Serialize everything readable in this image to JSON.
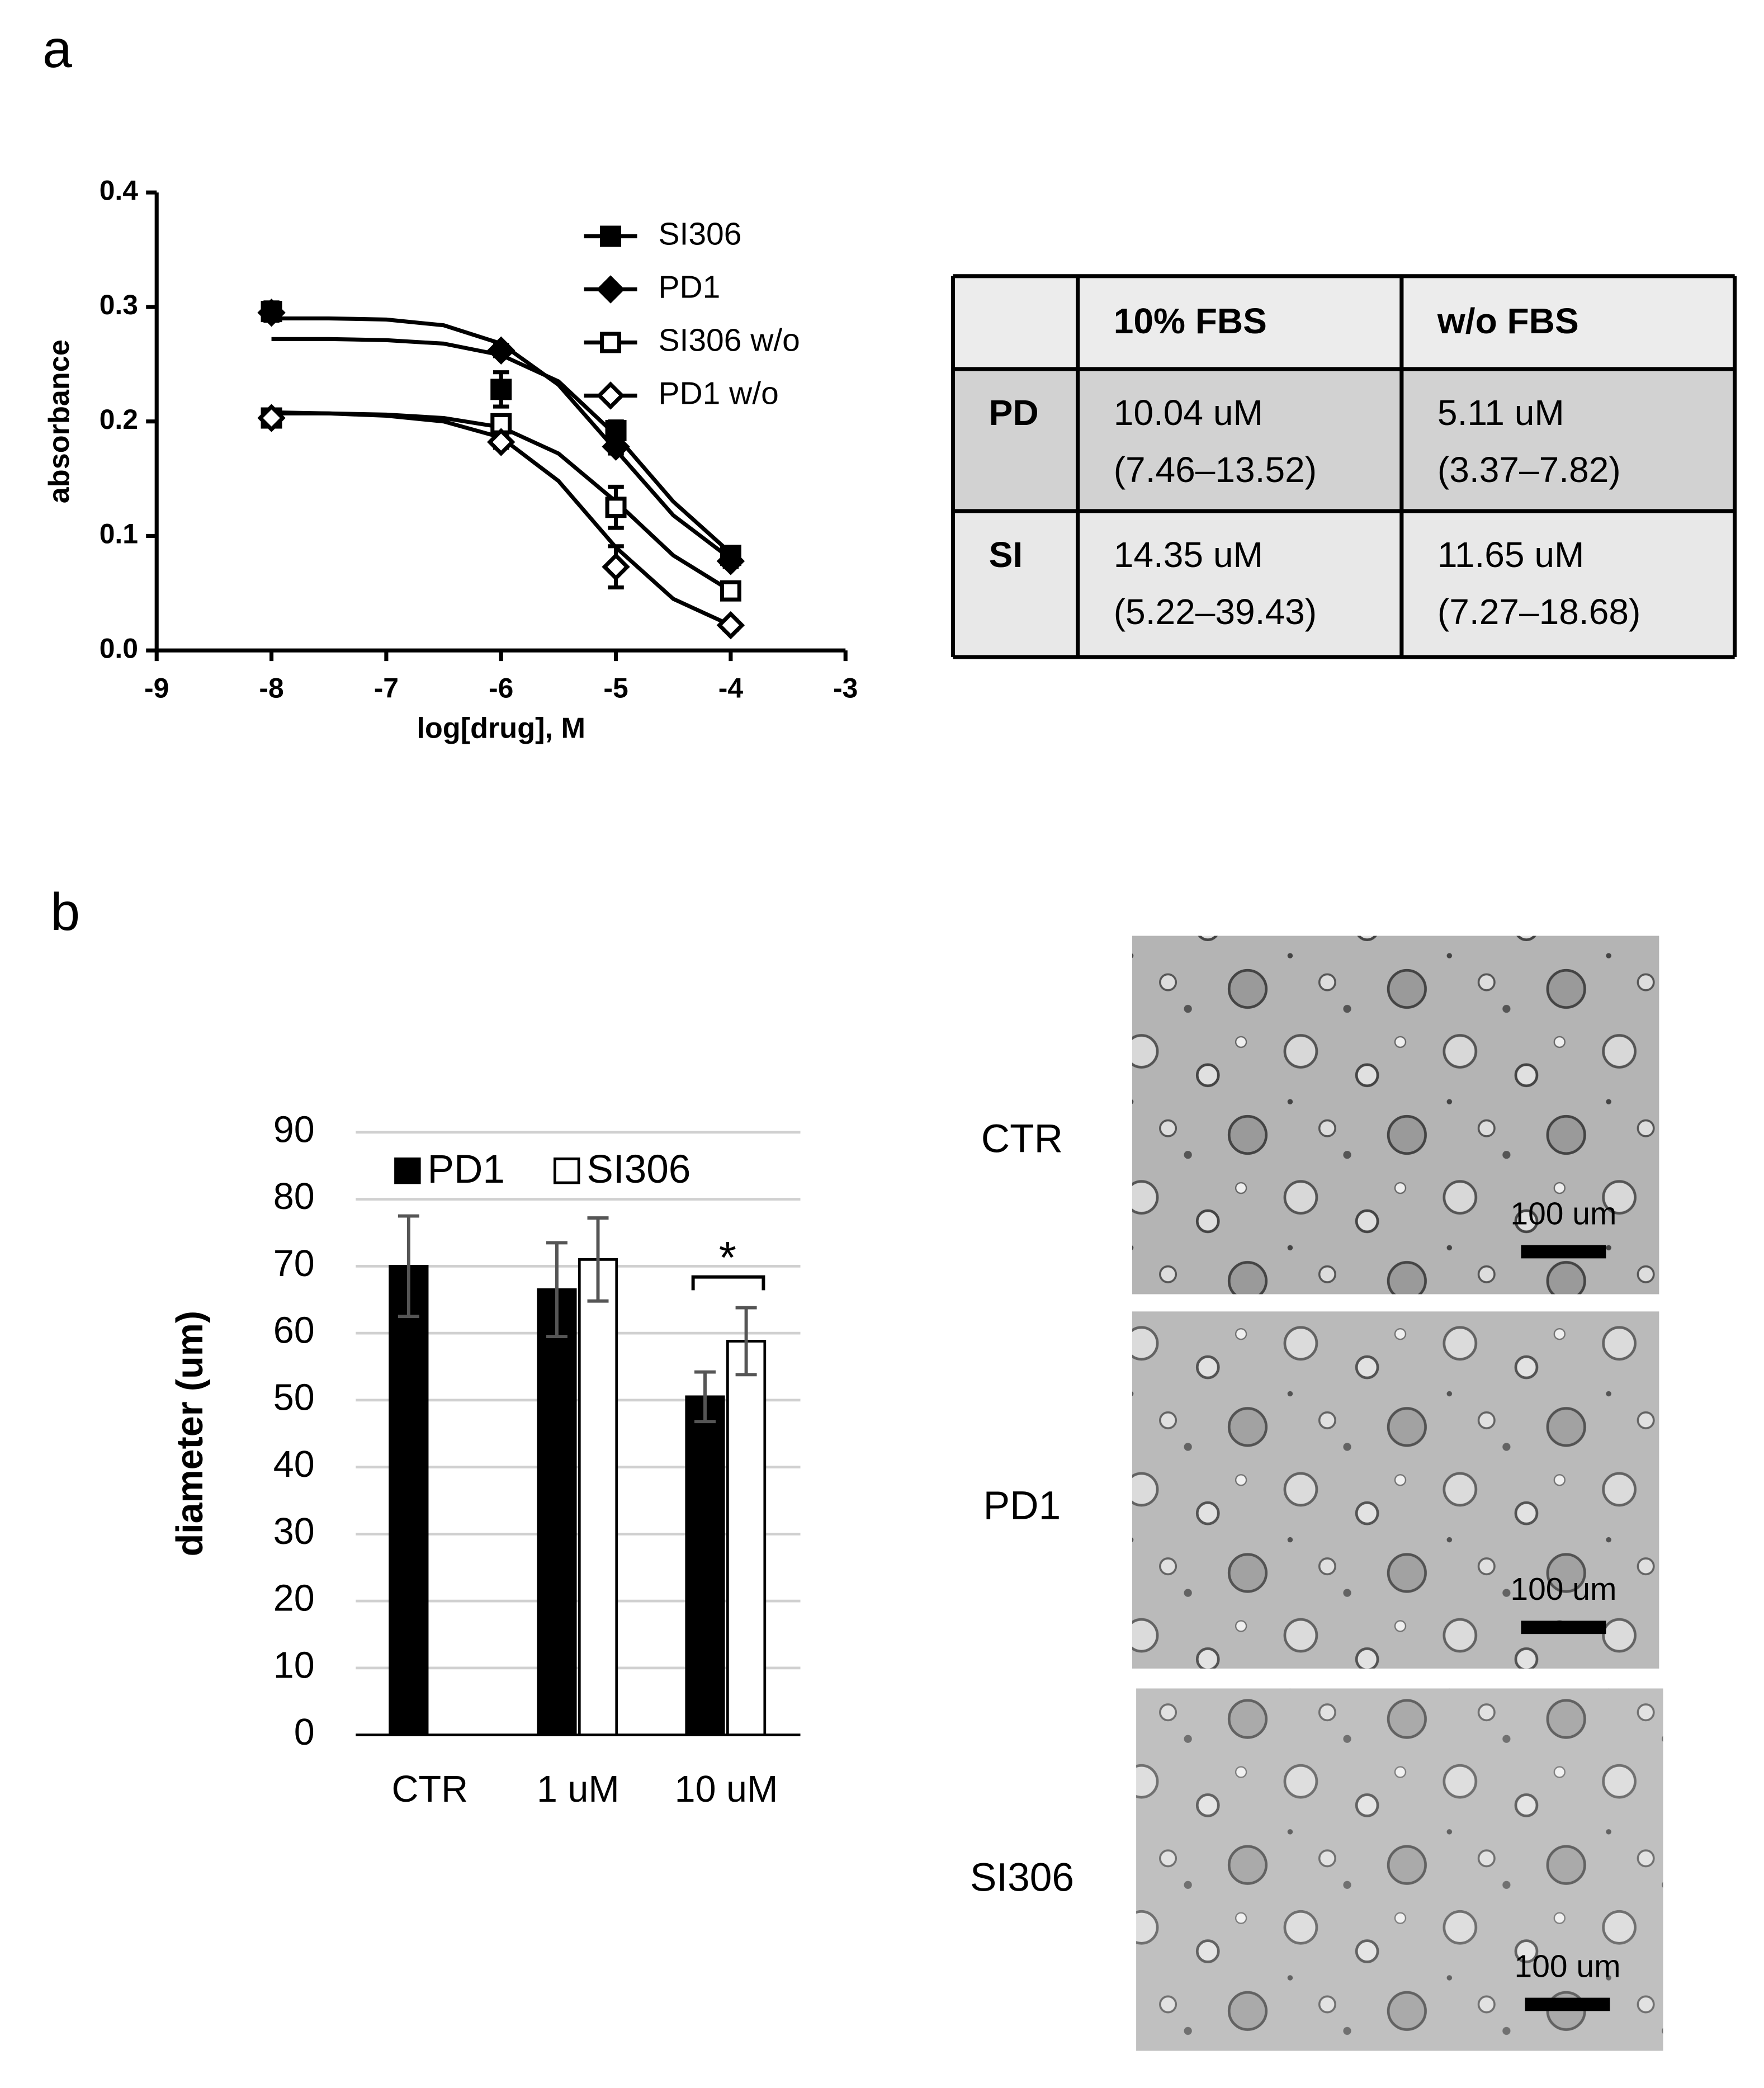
{
  "panels": [
    "a",
    "b"
  ],
  "chart_data": [
    {
      "type": "scatter",
      "x_label": "log[drug], M",
      "y_label": "absorbance",
      "xlim": [
        -9,
        -3
      ],
      "ylim": [
        0,
        0.4
      ],
      "xticks": [
        -9,
        -8,
        -7,
        -6,
        -5,
        -4,
        -3
      ],
      "yticks": [
        {
          "value": 0,
          "label": "0.0"
        },
        0.1,
        0.2,
        0.3,
        0.4
      ],
      "grid": false,
      "legend": "top-right",
      "x": [
        -8,
        -6,
        -5,
        -4
      ],
      "fit_x": [
        -8,
        -7.5,
        -7,
        -6.5,
        -6,
        -5.5,
        -5,
        -4.5,
        -4
      ],
      "series": [
        {
          "name": "SI306",
          "color": "#000000",
          "marker": "square",
          "filled": true,
          "values": [
            0.296,
            0.228,
            0.192,
            0.083
          ],
          "errors": [
            0.008,
            0.015,
            0.008,
            0.005
          ],
          "fit_values": [
            0.272,
            0.272,
            0.271,
            0.268,
            0.258,
            0.235,
            0.188,
            0.13,
            0.085
          ]
        },
        {
          "name": "PD1",
          "color": "#000000",
          "marker": "diamond",
          "filled": true,
          "values": [
            0.295,
            0.262,
            0.178,
            0.078
          ],
          "errors": [
            0.006,
            0.005,
            0.006,
            0.005
          ],
          "fit_values": [
            0.29,
            0.29,
            0.289,
            0.284,
            0.268,
            0.232,
            0.175,
            0.118,
            0.08
          ]
        },
        {
          "name": "SI306 w/o",
          "color": "#000000",
          "marker": "square",
          "filled": false,
          "values": [
            0.203,
            0.198,
            0.125,
            0.052
          ],
          "errors": [
            0.005,
            0.005,
            0.018,
            0.005
          ],
          "fit_values": [
            0.207,
            0.207,
            0.206,
            0.203,
            0.195,
            0.172,
            0.13,
            0.083,
            0.052
          ]
        },
        {
          "name": "PD1 w/o",
          "color": "#000000",
          "marker": "diamond",
          "filled": false,
          "values": [
            0.203,
            0.182,
            0.073,
            0.022
          ],
          "errors": [
            0.005,
            0.005,
            0.018,
            0.004
          ],
          "fit_values": [
            0.208,
            0.207,
            0.205,
            0.2,
            0.186,
            0.148,
            0.09,
            0.045,
            0.022
          ]
        }
      ]
    },
    {
      "type": "bar",
      "y_label": "diameter (um)",
      "categories": [
        "CTR",
        "1 uM",
        "10 uM"
      ],
      "ylim": [
        0,
        90
      ],
      "yticks": [
        0,
        10,
        20,
        30,
        40,
        50,
        60,
        70,
        80,
        90
      ],
      "grid": true,
      "legend": "top-left",
      "series": [
        {
          "name": "PD1",
          "color": "#000000",
          "values": [
            70,
            66.5,
            50.5
          ],
          "errors": [
            7.5,
            7,
            3.7
          ]
        },
        {
          "name": "SI306",
          "color": "#ffffff",
          "values": [
            null,
            71,
            58.8
          ],
          "errors": [
            null,
            6.2,
            5
          ]
        }
      ],
      "annotation": "*"
    }
  ],
  "table": {
    "columns": [
      "10% FBS",
      "w/o FBS"
    ],
    "rows": [
      {
        "label": "PD",
        "cells": [
          [
            "10.04 uM",
            "(7.46–13.52)"
          ],
          [
            "5.11 uM",
            "(3.37–7.82)"
          ]
        ]
      },
      {
        "label": "SI",
        "cells": [
          [
            "14.35 uM",
            "(5.22–39.43)"
          ],
          [
            "11.65 uM",
            "(7.27–18.68)"
          ]
        ]
      }
    ]
  },
  "micrographs": [
    {
      "label": "CTR",
      "scale_bar": "100 um"
    },
    {
      "label": "PD1",
      "scale_bar": "100 um"
    },
    {
      "label": "SI306",
      "scale_bar": "100 um"
    }
  ]
}
